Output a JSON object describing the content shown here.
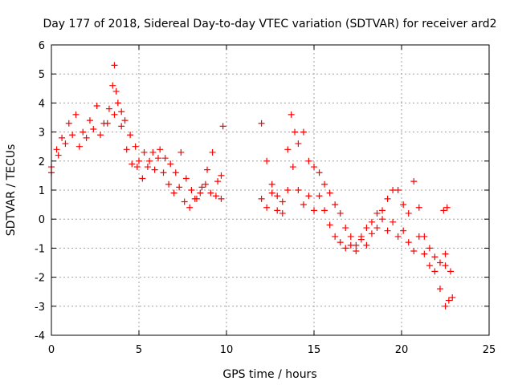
{
  "chart_data": {
    "type": "scatter",
    "title": "Day 177 of 2018, Sidereal Day-to-day VTEC variation (SDTVAR) for receiver ard2",
    "xlabel": "GPS time / hours",
    "ylabel": "SDTVAR / TECUs",
    "xlim": [
      0,
      25
    ],
    "ylim": [
      -4,
      6
    ],
    "xticks": [
      0,
      5,
      10,
      15,
      20,
      25
    ],
    "yticks": [
      -4,
      -3,
      -2,
      -1,
      0,
      1,
      2,
      3,
      4,
      5,
      6
    ],
    "grid": true,
    "marker": "+",
    "series": [
      {
        "name": "ard2",
        "color": "#ff0000",
        "segments": [
          {
            "x": [
              0,
              0.3,
              0.6,
              1.0,
              1.4,
              1.8,
              2.2,
              2.6,
              3.0,
              3.3,
              3.5,
              3.6,
              3.7,
              3.8,
              4.0,
              4.2,
              4.5,
              4.8,
              5.0,
              5.3,
              5.6,
              5.9,
              6.2,
              6.5,
              6.8,
              7.1,
              7.4,
              7.7,
              8.0,
              8.3,
              8.6,
              8.9,
              9.2,
              9.5,
              9.7,
              9.8
            ],
            "y": [
              1.8,
              2.4,
              2.8,
              3.3,
              3.6,
              3.0,
              3.4,
              3.9,
              3.3,
              3.8,
              4.6,
              5.3,
              4.4,
              4.0,
              3.7,
              3.4,
              2.9,
              2.5,
              2.0,
              2.3,
              2.0,
              1.7,
              2.4,
              2.1,
              1.9,
              1.6,
              2.3,
              1.4,
              1.0,
              0.7,
              1.1,
              1.7,
              2.3,
              1.3,
              1.5,
              3.2
            ]
          },
          {
            "x": [
              0,
              0.4,
              0.8,
              1.2,
              1.6,
              2.0,
              2.4,
              2.8,
              3.2,
              3.6,
              4.0,
              4.3,
              4.6,
              4.9,
              5.2,
              5.5,
              5.8,
              6.1,
              6.4,
              6.7,
              7.0,
              7.3,
              7.6,
              7.9,
              8.2,
              8.5,
              8.8,
              9.1,
              9.4,
              9.7
            ],
            "y": [
              1.6,
              2.2,
              2.6,
              2.9,
              2.5,
              2.8,
              3.1,
              2.9,
              3.3,
              3.6,
              3.2,
              2.4,
              1.9,
              1.8,
              1.4,
              1.8,
              2.3,
              2.1,
              1.6,
              1.2,
              0.9,
              1.1,
              0.6,
              0.4,
              0.7,
              0.9,
              1.2,
              0.9,
              0.8,
              0.7
            ]
          },
          {
            "x": [
              12.0,
              12.3,
              12.6,
              12.9,
              13.2,
              13.5,
              13.8,
              14.1,
              14.4,
              14.7,
              15.0,
              15.3,
              15.6,
              15.9,
              16.2,
              16.5,
              16.8,
              17.1,
              17.4,
              17.7,
              18.0,
              18.3,
              18.6,
              18.9,
              19.2,
              19.5,
              19.8,
              20.1,
              20.4,
              20.7,
              21.0,
              21.3,
              21.6,
              21.9,
              22.2,
              22.5,
              22.8
            ],
            "y": [
              3.3,
              2.0,
              1.2,
              0.8,
              0.6,
              1.0,
              1.8,
              2.6,
              3.0,
              2.0,
              1.8,
              1.6,
              1.2,
              0.9,
              0.5,
              0.2,
              -0.3,
              -0.9,
              -1.1,
              -0.7,
              -0.9,
              -0.5,
              -0.3,
              0.3,
              0.7,
              1.0,
              1.0,
              0.5,
              0.2,
              1.3,
              0.4,
              -0.6,
              -1.0,
              -1.3,
              -1.5,
              -1.2,
              -1.8
            ]
          },
          {
            "x": [
              12.0,
              12.3,
              12.6,
              12.9,
              13.2,
              13.5,
              13.7,
              13.9,
              14.1,
              14.4,
              14.7,
              15.0,
              15.3,
              15.6,
              15.9,
              16.2,
              16.5,
              16.8,
              17.1,
              17.4,
              17.7,
              18.0,
              18.3,
              18.6,
              18.9,
              19.2,
              19.5,
              19.8,
              20.1,
              20.4,
              20.7,
              21.0,
              21.3,
              21.6,
              21.9,
              22.2,
              22.5,
              22.7,
              22.9
            ],
            "y": [
              0.7,
              0.4,
              0.9,
              0.3,
              0.2,
              2.4,
              3.6,
              3.0,
              1.0,
              0.5,
              0.8,
              0.3,
              0.8,
              0.3,
              -0.2,
              -0.6,
              -0.8,
              -1.0,
              -0.6,
              -0.9,
              -0.6,
              -0.3,
              -0.1,
              0.2,
              0.0,
              -0.4,
              -0.1,
              -0.6,
              -0.4,
              -0.8,
              -1.1,
              -0.6,
              -1.2,
              -1.6,
              -1.8,
              -2.4,
              -3.0,
              -2.8,
              -2.7
            ]
          },
          {
            "x": [
              22.4,
              22.5,
              22.6
            ],
            "y": [
              0.3,
              -1.6,
              0.4
            ]
          }
        ]
      }
    ]
  }
}
